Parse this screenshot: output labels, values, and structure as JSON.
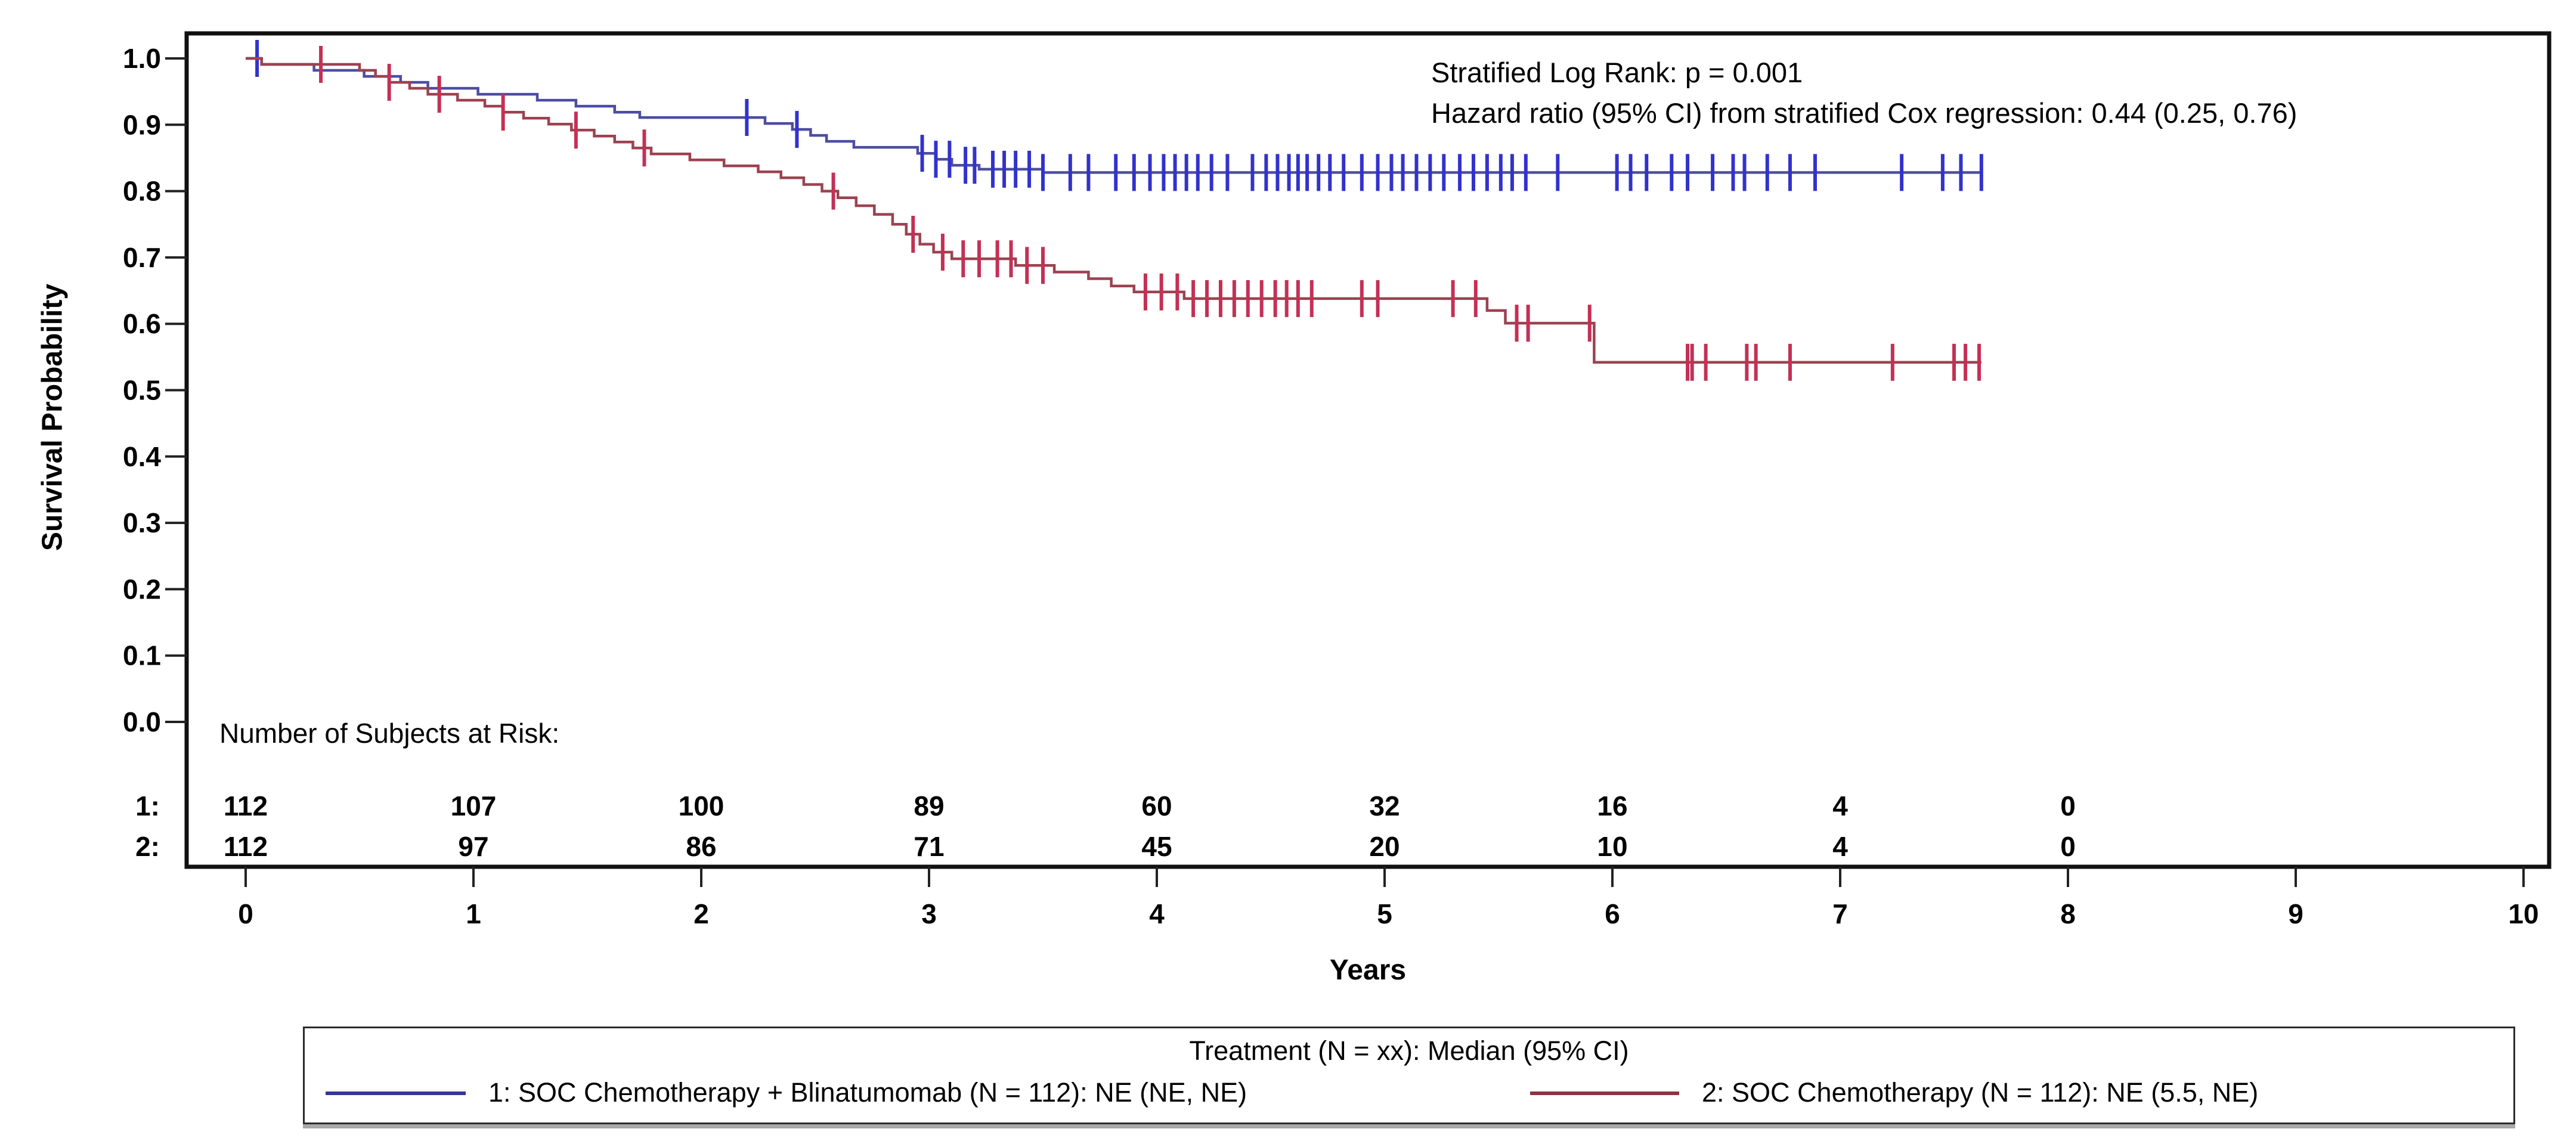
{
  "annotation": {
    "line1": "Stratified Log Rank: p = 0.001",
    "line2": "Hazard ratio (95% CI) from stratified Cox regression: 0.44 (0.25, 0.76)"
  },
  "y_axis": {
    "label": "Survival Probability",
    "ticks": [
      "1.0",
      "0.9",
      "0.8",
      "0.7",
      "0.6",
      "0.5",
      "0.4",
      "0.3",
      "0.2",
      "0.1",
      "0.0"
    ]
  },
  "x_axis": {
    "label": "Years",
    "ticks": [
      "0",
      "1",
      "2",
      "3",
      "4",
      "5",
      "6",
      "7",
      "8",
      "9",
      "10"
    ]
  },
  "risk_table": {
    "title": "Number of Subjects at Risk:",
    "times": [
      0,
      1,
      2,
      3,
      4,
      5,
      6,
      7,
      8
    ],
    "rows": [
      {
        "label": "1:",
        "color": "#3b3bcc",
        "counts": [
          "112",
          "107",
          "100",
          "89",
          "60",
          "32",
          "16",
          "4",
          "0"
        ]
      },
      {
        "label": "2:",
        "color": "#b4334a",
        "counts": [
          "112",
          "97",
          "86",
          "71",
          "45",
          "20",
          "10",
          "4",
          "0"
        ]
      }
    ]
  },
  "legend": {
    "title": "Treatment (N = xx): Median (95% CI)",
    "items": [
      {
        "label": "1: SOC Chemotherapy + Blinatumomab (N = 112): NE (NE, NE)",
        "color": "#35359b"
      },
      {
        "label": "2: SOC Chemotherapy (N = 112): NE (5.5, NE)",
        "color": "#8e3242"
      }
    ]
  },
  "chart_data": {
    "type": "line",
    "subtype": "kaplan_meier_step",
    "title": "",
    "xlabel": "Years",
    "ylabel": "Survival Probability",
    "xlim": [
      0,
      10
    ],
    "ylim": [
      0.0,
      1.0
    ],
    "grid": false,
    "legend_position": "bottom",
    "stats": {
      "log_rank_p": "0.001",
      "hazard_ratio": "0.44",
      "hazard_ratio_ci": "(0.25, 0.76)"
    },
    "series": [
      {
        "name": "1: SOC Chemotherapy + Blinatumomab",
        "n": 112,
        "median": "NE (NE, NE)",
        "line_color": "#4d4da3",
        "censor_color": "#3232cd",
        "end_time": 7.62,
        "steps": [
          [
            0.07,
            0.991
          ],
          [
            0.3,
            0.982
          ],
          [
            0.52,
            0.973
          ],
          [
            0.68,
            0.964
          ],
          [
            0.8,
            0.955
          ],
          [
            1.02,
            0.946
          ],
          [
            1.28,
            0.937
          ],
          [
            1.45,
            0.928
          ],
          [
            1.62,
            0.919
          ],
          [
            1.73,
            0.911
          ],
          [
            2.28,
            0.902
          ],
          [
            2.4,
            0.893
          ],
          [
            2.48,
            0.884
          ],
          [
            2.55,
            0.875
          ],
          [
            2.67,
            0.866
          ],
          [
            2.95,
            0.857
          ],
          [
            3.03,
            0.848
          ],
          [
            3.1,
            0.839
          ],
          [
            3.22,
            0.833
          ],
          [
            3.5,
            0.828
          ]
        ],
        "censor_times": [
          0.05,
          2.2,
          2.42,
          2.97,
          3.03,
          3.09,
          3.16,
          3.2,
          3.28,
          3.33,
          3.38,
          3.44,
          3.5,
          3.62,
          3.7,
          3.82,
          3.9,
          3.97,
          4.03,
          4.08,
          4.13,
          4.18,
          4.24,
          4.31,
          4.42,
          4.48,
          4.53,
          4.58,
          4.62,
          4.66,
          4.71,
          4.76,
          4.82,
          4.9,
          4.97,
          5.03,
          5.08,
          5.14,
          5.2,
          5.26,
          5.33,
          5.39,
          5.45,
          5.51,
          5.56,
          5.62,
          5.76,
          6.02,
          6.08,
          6.15,
          6.26,
          6.33,
          6.44,
          6.53,
          6.58,
          6.68,
          6.78,
          6.89,
          7.27,
          7.45,
          7.53,
          7.62
        ],
        "at_risk": [
          112,
          107,
          100,
          89,
          60,
          32,
          16,
          4,
          0
        ]
      },
      {
        "name": "2: SOC Chemotherapy",
        "n": 112,
        "median": "NE (5.5, NE)",
        "line_color": "#9c4250",
        "censor_color": "#c43055",
        "end_time": 7.62,
        "steps": [
          [
            0.07,
            0.991
          ],
          [
            0.5,
            0.982
          ],
          [
            0.57,
            0.973
          ],
          [
            0.63,
            0.964
          ],
          [
            0.72,
            0.955
          ],
          [
            0.8,
            0.946
          ],
          [
            0.93,
            0.937
          ],
          [
            1.05,
            0.928
          ],
          [
            1.13,
            0.919
          ],
          [
            1.22,
            0.91
          ],
          [
            1.33,
            0.901
          ],
          [
            1.43,
            0.892
          ],
          [
            1.53,
            0.883
          ],
          [
            1.62,
            0.874
          ],
          [
            1.7,
            0.865
          ],
          [
            1.78,
            0.856
          ],
          [
            1.95,
            0.847
          ],
          [
            2.1,
            0.838
          ],
          [
            2.25,
            0.829
          ],
          [
            2.35,
            0.82
          ],
          [
            2.45,
            0.81
          ],
          [
            2.53,
            0.8
          ],
          [
            2.6,
            0.79
          ],
          [
            2.68,
            0.778
          ],
          [
            2.76,
            0.765
          ],
          [
            2.84,
            0.75
          ],
          [
            2.9,
            0.735
          ],
          [
            2.96,
            0.72
          ],
          [
            3.02,
            0.708
          ],
          [
            3.1,
            0.698
          ],
          [
            3.38,
            0.688
          ],
          [
            3.55,
            0.678
          ],
          [
            3.7,
            0.668
          ],
          [
            3.8,
            0.657
          ],
          [
            3.9,
            0.648
          ],
          [
            4.12,
            0.638
          ],
          [
            5.45,
            0.62
          ],
          [
            5.53,
            0.601
          ],
          [
            5.92,
            0.542
          ]
        ],
        "censor_times": [
          0.33,
          0.63,
          0.85,
          1.13,
          1.45,
          1.75,
          2.58,
          2.93,
          3.06,
          3.15,
          3.22,
          3.3,
          3.36,
          3.43,
          3.5,
          3.95,
          4.02,
          4.09,
          4.16,
          4.22,
          4.28,
          4.34,
          4.4,
          4.46,
          4.52,
          4.57,
          4.62,
          4.68,
          4.9,
          4.97,
          5.3,
          5.4,
          5.58,
          5.63,
          5.9,
          6.33,
          6.35,
          6.41,
          6.59,
          6.63,
          6.78,
          7.23,
          7.5,
          7.55,
          7.61
        ],
        "at_risk": [
          112,
          97,
          86,
          71,
          45,
          20,
          10,
          4,
          0
        ]
      }
    ]
  }
}
